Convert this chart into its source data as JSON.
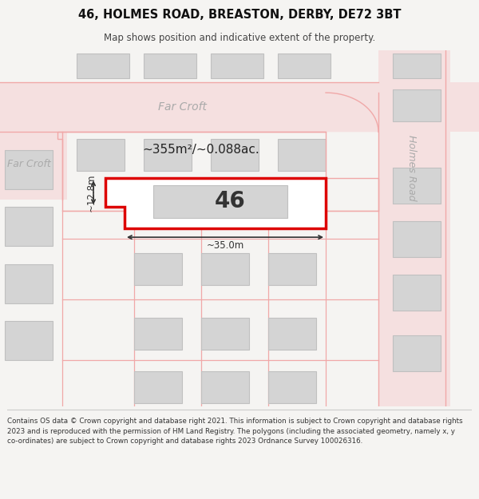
{
  "title": "46, HOLMES ROAD, BREASTON, DERBY, DE72 3BT",
  "subtitle": "Map shows position and indicative extent of the property.",
  "footer": "Contains OS data © Crown copyright and database right 2021. This information is subject to Crown copyright and database rights 2023 and is reproduced with the permission of HM Land Registry. The polygons (including the associated geometry, namely x, y co-ordinates) are subject to Crown copyright and database rights 2023 Ordnance Survey 100026316.",
  "bg_color": "#f5f4f2",
  "road_fill": "#f5e0e0",
  "road_line": "#f0a8a8",
  "building_fill": "#d4d4d4",
  "building_edge": "#c0c0c0",
  "highlight_line": "#dd0000",
  "highlight_fill": "#ffffff",
  "dim_color": "#333333",
  "street_color": "#aaaaaa",
  "footer_color": "#333333",
  "area_text": "~355m²/~0.088ac.",
  "number_text": "46",
  "dim_width_text": "~35.0m",
  "dim_height_text": "~12.8m",
  "street_far_croft_top": "Far Croft",
  "street_far_croft_left": "Far Croft",
  "street_holmes": "Holmes Road"
}
